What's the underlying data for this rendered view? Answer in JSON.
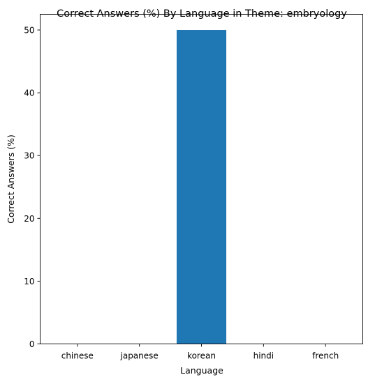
{
  "chart_data": {
    "type": "bar",
    "title": "Correct Answers (%) By Language in Theme: embryology",
    "xlabel": "Language",
    "ylabel": "Correct Answers (%)",
    "categories": [
      "chinese",
      "japanese",
      "korean",
      "hindi",
      "french"
    ],
    "values": [
      0,
      0,
      50,
      0,
      0
    ],
    "ylim": [
      0,
      52.5
    ],
    "yticks": [
      0,
      10,
      20,
      30,
      40,
      50
    ],
    "bar_color": "#1f77b4",
    "grid": false,
    "legend": "none"
  }
}
